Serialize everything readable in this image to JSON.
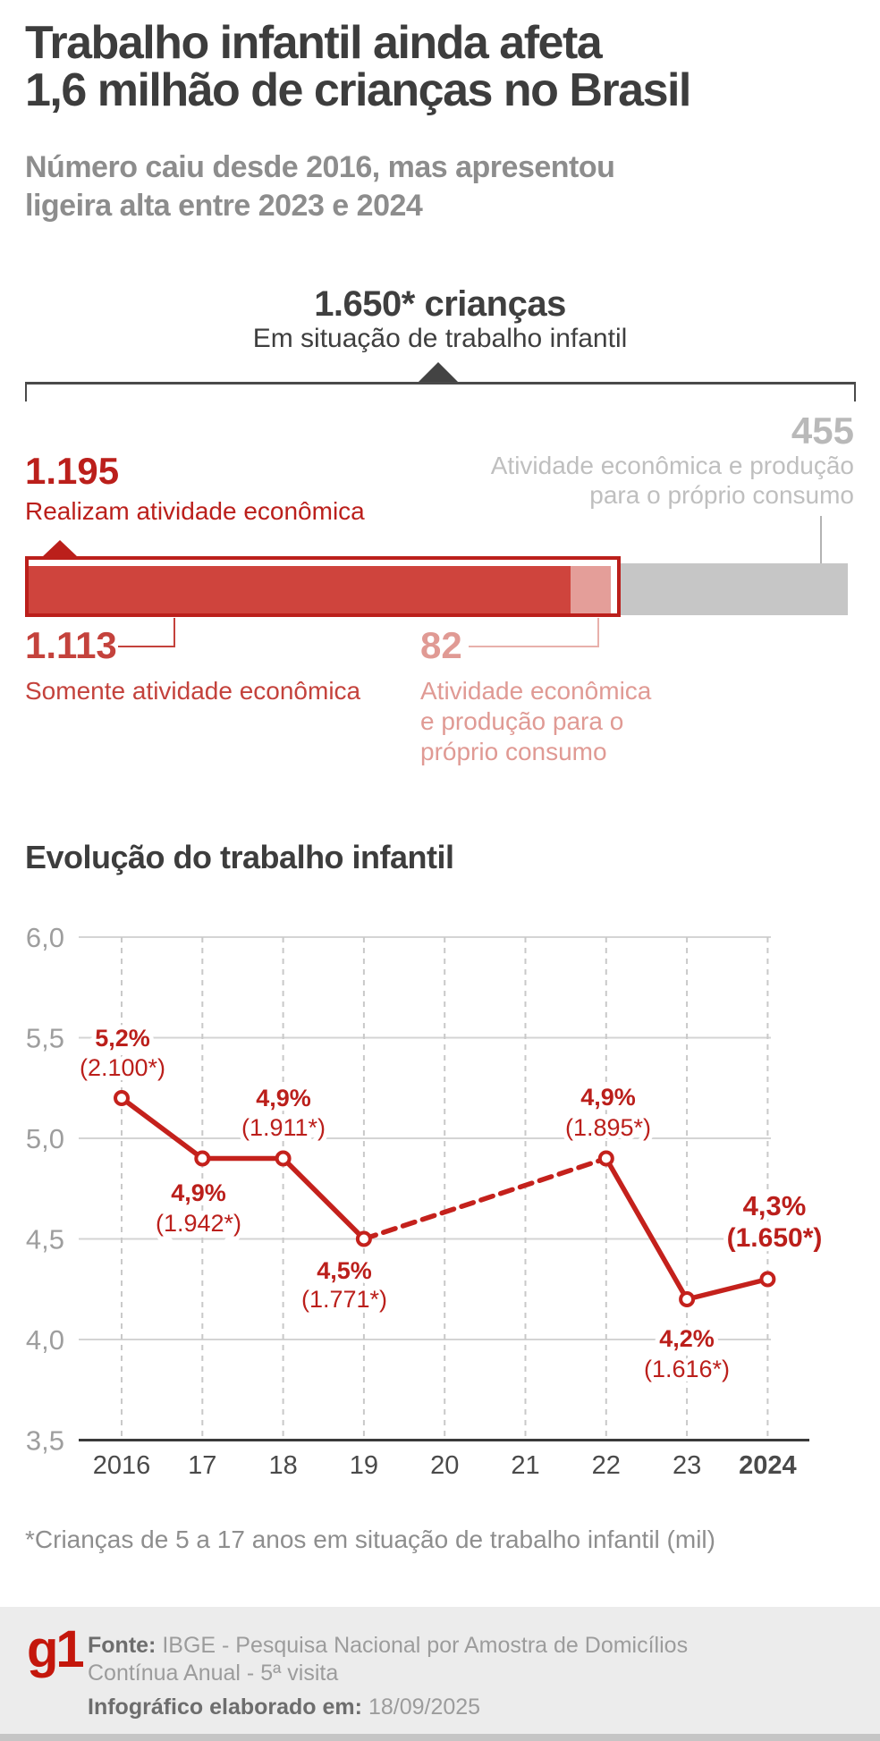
{
  "header": {
    "title_line1": "Trabalho infantil ainda afeta",
    "title_line2": "1,6 milhão de crianças no Brasil",
    "subtitle_line1": "Número caiu desde 2016, mas apresentou",
    "subtitle_line2": "ligeira alta entre 2023 e 2024"
  },
  "total_callout": {
    "value": "1.650* crianças",
    "caption": "Em situação de trabalho infantil"
  },
  "bar_breakdown": {
    "total": 1650,
    "unit": "mil crianças",
    "economic_activity": {
      "value": 1195,
      "value_label": "1.195",
      "label": "Realizam atividade econômica"
    },
    "own_consumption": {
      "value": 455,
      "value_label": "455",
      "label_line1": "Atividade econômica e produção",
      "label_line2": "para o próprio consumo"
    },
    "only_economic": {
      "value": 1113,
      "value_label": "1.113",
      "label": "Somente atividade econômica"
    },
    "both": {
      "value": 82,
      "value_label": "82",
      "label_line1": "Atividade econômica",
      "label_line2": "e produção para o",
      "label_line3": "próprio consumo"
    }
  },
  "chart": {
    "title": "Evolução do trabalho infantil"
  },
  "chart_data": [
    {
      "type": "bar",
      "title": "1.650* crianças em situação de trabalho infantil (mil)",
      "categories": [
        "Realizam atividade econômica",
        "Somente atividade econômica",
        "Atividade econômica e produção para o próprio consumo (dentro de atividade econômica)",
        "Atividade econômica e produção para o próprio consumo"
      ],
      "values": [
        1195,
        1113,
        82,
        455
      ],
      "total": 1650
    },
    {
      "type": "line",
      "title": "Evolução do trabalho infantil",
      "x": [
        "2016",
        "17",
        "18",
        "19",
        "20",
        "21",
        "22",
        "23",
        "2024"
      ],
      "values": [
        5.2,
        4.9,
        4.9,
        4.5,
        null,
        null,
        4.9,
        4.2,
        4.3
      ],
      "children_thousands": [
        2100,
        1942,
        1911,
        1771,
        null,
        null,
        1895,
        1616,
        1650
      ],
      "point_labels": [
        {
          "i": 0,
          "pct": "5,2%",
          "abs": "(2.100*)"
        },
        {
          "i": 1,
          "pct": "4,9%",
          "abs": "(1.942*)"
        },
        {
          "i": 2,
          "pct": "4,9%",
          "abs": "(1.911*)"
        },
        {
          "i": 3,
          "pct": "4,5%",
          "abs": "(1.771*)"
        },
        {
          "i": 6,
          "pct": "4,9%",
          "abs": "(1.895*)"
        },
        {
          "i": 7,
          "pct": "4,2%",
          "abs": "(1.616*)"
        },
        {
          "i": 8,
          "pct": "4,3%",
          "abs": "(1.650*)"
        }
      ],
      "y_tick_labels": [
        "6,0",
        "5,5",
        "5,0",
        "4,5",
        "4,0",
        "3,5"
      ],
      "ylim": [
        3.5,
        6.0
      ],
      "y_step": 0.5,
      "dashed_segment": [
        "19",
        "22"
      ],
      "grid": true,
      "unit": "%"
    }
  ],
  "footnote": "*Crianças de 5 a 17 anos em situação de trabalho infantil (mil)",
  "footer": {
    "logo": "g1",
    "source_label": "Fonte:",
    "source_line1": "IBGE - Pesquisa Nacional por Amostra de Domicílios",
    "source_line2": "Contínua Anual - 5ª visita",
    "made_label": "Infográfico elaborado em:",
    "made_date": "18/09/2025"
  },
  "colors": {
    "red": "#bb1f1b",
    "red_fill": "#cf443d",
    "light_red": "#e49e99",
    "gray_bar": "#c6c6c6",
    "gray_value_text": "#b9b9b9",
    "dark_text": "#3d3d3d",
    "subtitle_gray": "#8d8d8d",
    "footer_bg": "#ececec",
    "g1_red": "#c4170c"
  }
}
